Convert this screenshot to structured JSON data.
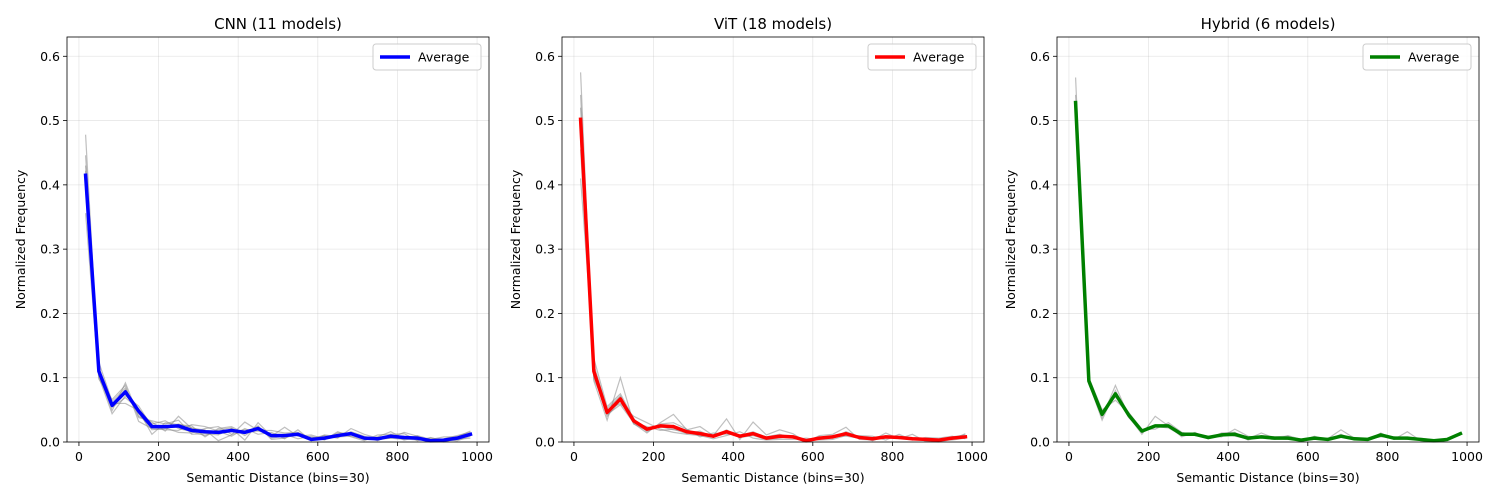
{
  "panels": [
    {
      "title": "CNN (11 models)",
      "legend": "Average",
      "color": "#0000ff",
      "chart_data": {
        "type": "line",
        "title": "CNN (11 models)",
        "xlabel": "Semantic Distance (bins=30)",
        "ylabel": "Normalized Frequency",
        "xlim": [
          -30,
          1030
        ],
        "ylim": [
          0,
          0.63
        ],
        "xticks": [
          0,
          200,
          400,
          600,
          800,
          1000
        ],
        "yticks": [
          0.0,
          0.1,
          0.2,
          0.3,
          0.4,
          0.5,
          0.6
        ],
        "grid": true,
        "legend_position": "top-right",
        "x": [
          16.7,
          50,
          83.3,
          116.7,
          150,
          183.3,
          216.7,
          250,
          283.3,
          316.7,
          350,
          383.3,
          416.7,
          450,
          483.3,
          516.7,
          550,
          583.3,
          616.7,
          650,
          683.3,
          716.7,
          750,
          783.3,
          816.7,
          850,
          883.3,
          916.7,
          950,
          983.3
        ],
        "series": [
          {
            "name": "Average",
            "values": [
              0.415,
              0.11,
              0.057,
              0.078,
              0.048,
              0.024,
              0.024,
              0.025,
              0.018,
              0.016,
              0.015,
              0.018,
              0.015,
              0.021,
              0.01,
              0.01,
              0.012,
              0.004,
              0.006,
              0.01,
              0.013,
              0.006,
              0.005,
              0.009,
              0.007,
              0.006,
              0.002,
              0.003,
              0.006,
              0.012
            ]
          }
        ],
        "individual_models": [
          [
            0.478,
            0.105,
            0.049,
            0.092,
            0.04,
            0.031,
            0.017,
            0.04,
            0.021,
            0.019,
            0.002,
            0.011,
            0.031,
            0.018,
            0.018,
            0.014,
            0.015,
            0.006,
            0.01,
            0.007,
            0.016,
            0.009,
            0.002,
            0.012,
            0.003,
            0.008,
            0.003,
            0.0,
            0.006,
            0.011
          ],
          [
            0.446,
            0.112,
            0.06,
            0.06,
            0.049,
            0.012,
            0.03,
            0.027,
            0.025,
            0.008,
            0.021,
            0.024,
            0.013,
            0.025,
            0.004,
            0.006,
            0.013,
            0.003,
            0.009,
            0.006,
            0.021,
            0.012,
            0.006,
            0.006,
            0.004,
            0.01,
            0.004,
            0.008,
            0.008,
            0.017
          ],
          [
            0.393,
            0.101,
            0.044,
            0.072,
            0.056,
            0.024,
            0.022,
            0.015,
            0.014,
            0.021,
            0.024,
            0.012,
            0.016,
            0.017,
            0.012,
            0.012,
            0.005,
            0.009,
            0.003,
            0.016,
            0.008,
            0.002,
            0.011,
            0.012,
            0.013,
            0.002,
            0.007,
            0.001,
            0.004,
            0.006
          ],
          [
            0.422,
            0.124,
            0.063,
            0.084,
            0.038,
            0.033,
            0.028,
            0.034,
            0.012,
            0.013,
            0.011,
            0.021,
            0.003,
            0.03,
            0.009,
            0.023,
            0.009,
            0.011,
            0.005,
            0.012,
            0.011,
            0.008,
            0.004,
            0.006,
            0.015,
            0.009,
            0.0,
            0.005,
            0.01,
            0.015
          ],
          [
            0.356,
            0.098,
            0.066,
            0.088,
            0.032,
            0.021,
            0.019,
            0.018,
            0.027,
            0.024,
            0.017,
            0.009,
            0.021,
            0.012,
            0.015,
            0.005,
            0.019,
            0.002,
            0.011,
            0.008,
            0.009,
            0.004,
            0.008,
            0.016,
            0.005,
            0.003,
            0.006,
            0.004,
            0.002,
            0.009
          ],
          [
            0.43,
            0.116,
            0.054,
            0.069,
            0.051,
            0.028,
            0.033,
            0.021,
            0.016,
            0.01,
            0.019,
            0.022,
            0.01,
            0.024,
            0.006,
            0.009,
            0.011,
            0.007,
            0.004,
            0.014,
            0.014,
            0.007,
            0.003,
            0.008,
            0.009,
            0.007,
            0.002,
            0.002,
            0.007,
            0.013
          ],
          [
            0.401,
            0.107,
            0.058,
            0.081,
            0.044,
            0.019,
            0.021,
            0.028,
            0.022,
            0.017,
            0.013,
            0.016,
            0.019,
            0.02,
            0.011,
            0.008,
            0.014,
            0.004,
            0.007,
            0.009,
            0.012,
            0.006,
            0.006,
            0.01,
            0.006,
            0.005,
            0.001,
            0.004,
            0.005,
            0.012
          ]
        ]
      }
    },
    {
      "title": "ViT (18 models)",
      "legend": "Average",
      "color": "#ff0000",
      "chart_data": {
        "type": "line",
        "title": "ViT (18 models)",
        "xlabel": "Semantic Distance (bins=30)",
        "ylabel": "Normalized Frequency",
        "xlim": [
          -30,
          1030
        ],
        "ylim": [
          0,
          0.63
        ],
        "xticks": [
          0,
          200,
          400,
          600,
          800,
          1000
        ],
        "yticks": [
          0.0,
          0.1,
          0.2,
          0.3,
          0.4,
          0.5,
          0.6
        ],
        "grid": true,
        "legend_position": "top-right",
        "x": [
          16.7,
          50,
          83.3,
          116.7,
          150,
          183.3,
          216.7,
          250,
          283.3,
          316.7,
          350,
          383.3,
          416.7,
          450,
          483.3,
          516.7,
          550,
          583.3,
          616.7,
          650,
          683.3,
          716.7,
          750,
          783.3,
          816.7,
          850,
          883.3,
          916.7,
          950,
          983.3
        ],
        "series": [
          {
            "name": "Average",
            "values": [
              0.502,
              0.11,
              0.046,
              0.067,
              0.033,
              0.02,
              0.025,
              0.024,
              0.016,
              0.013,
              0.009,
              0.016,
              0.009,
              0.013,
              0.006,
              0.009,
              0.008,
              0.002,
              0.006,
              0.008,
              0.013,
              0.007,
              0.005,
              0.008,
              0.007,
              0.005,
              0.004,
              0.003,
              0.006,
              0.008
            ]
          }
        ],
        "individual_models": [
          [
            0.575,
            0.095,
            0.034,
            0.1,
            0.029,
            0.014,
            0.03,
            0.043,
            0.019,
            0.024,
            0.01,
            0.036,
            0.004,
            0.031,
            0.011,
            0.019,
            0.013,
            0.0,
            0.01,
            0.012,
            0.023,
            0.004,
            0.003,
            0.014,
            0.005,
            0.012,
            0.001,
            0.0,
            0.004,
            0.013
          ],
          [
            0.54,
            0.12,
            0.05,
            0.06,
            0.04,
            0.03,
            0.02,
            0.015,
            0.012,
            0.01,
            0.005,
            0.01,
            0.016,
            0.006,
            0.003,
            0.004,
            0.004,
            0.006,
            0.003,
            0.004,
            0.01,
            0.01,
            0.009,
            0.003,
            0.012,
            0.003,
            0.007,
            0.006,
            0.009,
            0.005
          ],
          [
            0.41,
            0.13,
            0.055,
            0.075,
            0.036,
            0.016,
            0.028,
            0.03,
            0.02,
            0.008,
            0.014,
            0.012,
            0.011,
            0.014,
            0.008,
            0.012,
            0.006,
            0.003,
            0.008,
            0.006,
            0.016,
            0.008,
            0.002,
            0.01,
            0.006,
            0.004,
            0.005,
            0.001,
            0.008,
            0.011
          ],
          [
            0.47,
            0.104,
            0.043,
            0.058,
            0.03,
            0.024,
            0.018,
            0.02,
            0.013,
            0.017,
            0.007,
            0.019,
            0.007,
            0.01,
            0.004,
            0.006,
            0.01,
            0.002,
            0.004,
            0.01,
            0.009,
            0.006,
            0.007,
            0.006,
            0.008,
            0.006,
            0.003,
            0.004,
            0.003,
            0.006
          ],
          [
            0.52,
            0.098,
            0.052,
            0.072,
            0.028,
            0.018,
            0.026,
            0.022,
            0.018,
            0.012,
            0.011,
            0.014,
            0.01,
            0.016,
            0.007,
            0.01,
            0.007,
            0.002,
            0.006,
            0.009,
            0.014,
            0.008,
            0.004,
            0.009,
            0.007,
            0.005,
            0.004,
            0.003,
            0.006,
            0.009
          ],
          [
            0.495,
            0.115,
            0.04,
            0.064,
            0.035,
            0.022,
            0.023,
            0.026,
            0.015,
            0.011,
            0.008,
            0.015,
            0.008,
            0.012,
            0.006,
            0.008,
            0.009,
            0.001,
            0.007,
            0.007,
            0.012,
            0.006,
            0.006,
            0.008,
            0.006,
            0.005,
            0.005,
            0.002,
            0.007,
            0.008
          ],
          [
            0.455,
            0.108,
            0.048,
            0.07,
            0.031,
            0.02,
            0.024,
            0.019,
            0.017,
            0.014,
            0.01,
            0.017,
            0.009,
            0.013,
            0.005,
            0.009,
            0.008,
            0.003,
            0.005,
            0.008,
            0.012,
            0.007,
            0.005,
            0.007,
            0.008,
            0.006,
            0.004,
            0.003,
            0.005,
            0.007
          ]
        ]
      }
    },
    {
      "title": "Hybrid (6 models)",
      "legend": "Average",
      "color": "#008000",
      "chart_data": {
        "type": "line",
        "title": "Hybrid (6 models)",
        "xlabel": "Semantic Distance (bins=30)",
        "ylabel": "Normalized Frequency",
        "xlim": [
          -30,
          1030
        ],
        "ylim": [
          0,
          0.63
        ],
        "xticks": [
          0,
          200,
          400,
          600,
          800,
          1000
        ],
        "yticks": [
          0.0,
          0.1,
          0.2,
          0.3,
          0.4,
          0.5,
          0.6
        ],
        "grid": true,
        "legend_position": "top-right",
        "x": [
          16.7,
          50,
          83.3,
          116.7,
          150,
          183.3,
          216.7,
          250,
          283.3,
          316.7,
          350,
          383.3,
          416.7,
          450,
          483.3,
          516.7,
          550,
          583.3,
          616.7,
          650,
          683.3,
          716.7,
          750,
          783.3,
          816.7,
          850,
          883.3,
          916.7,
          950,
          983.3
        ],
        "series": [
          {
            "name": "Average",
            "values": [
              0.528,
              0.095,
              0.043,
              0.075,
              0.042,
              0.017,
              0.025,
              0.025,
              0.012,
              0.012,
              0.007,
              0.011,
              0.012,
              0.006,
              0.008,
              0.006,
              0.006,
              0.003,
              0.006,
              0.004,
              0.009,
              0.005,
              0.004,
              0.011,
              0.006,
              0.006,
              0.004,
              0.002,
              0.004,
              0.013
            ]
          }
        ],
        "individual_models": [
          [
            0.567,
            0.09,
            0.038,
            0.088,
            0.04,
            0.012,
            0.04,
            0.025,
            0.008,
            0.015,
            0.005,
            0.014,
            0.015,
            0.003,
            0.01,
            0.008,
            0.009,
            0.002,
            0.009,
            0.003,
            0.012,
            0.003,
            0.003,
            0.014,
            0.004,
            0.016,
            0.002,
            0.001,
            0.003,
            0.015
          ],
          [
            0.51,
            0.1,
            0.05,
            0.065,
            0.045,
            0.02,
            0.02,
            0.03,
            0.015,
            0.01,
            0.009,
            0.008,
            0.02,
            0.009,
            0.006,
            0.004,
            0.01,
            0.004,
            0.004,
            0.006,
            0.007,
            0.007,
            0.005,
            0.008,
            0.008,
            0.004,
            0.006,
            0.003,
            0.005,
            0.011
          ],
          [
            0.54,
            0.092,
            0.034,
            0.08,
            0.038,
            0.016,
            0.024,
            0.022,
            0.01,
            0.013,
            0.006,
            0.012,
            0.009,
            0.005,
            0.014,
            0.006,
            0.005,
            0.002,
            0.006,
            0.003,
            0.01,
            0.004,
            0.003,
            0.012,
            0.005,
            0.006,
            0.003,
            0.002,
            0.004,
            0.014
          ],
          [
            0.498,
            0.098,
            0.048,
            0.07,
            0.046,
            0.019,
            0.026,
            0.024,
            0.014,
            0.01,
            0.008,
            0.01,
            0.011,
            0.007,
            0.007,
            0.006,
            0.004,
            0.004,
            0.005,
            0.005,
            0.019,
            0.006,
            0.005,
            0.01,
            0.007,
            0.005,
            0.005,
            0.002,
            0.004,
            0.012
          ]
        ]
      }
    }
  ]
}
